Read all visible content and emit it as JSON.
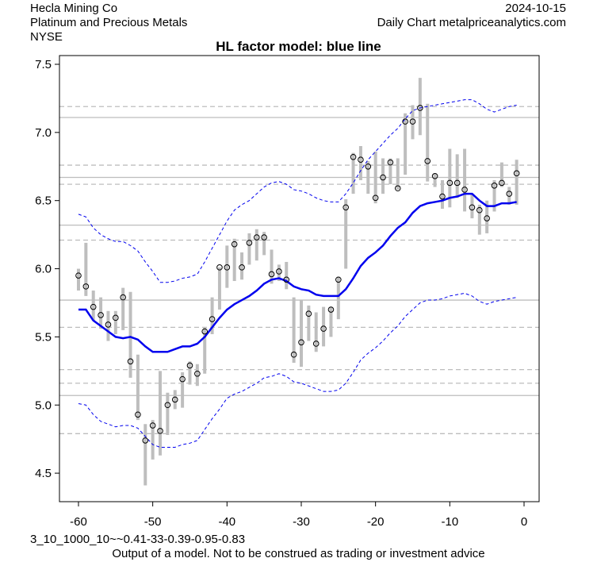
{
  "header": {
    "company": "Hecla Mining Co",
    "sector": "Platinum and Precious Metals",
    "exchange": "NYSE",
    "date": "2024-10-15",
    "source": "Daily Chart metalpriceanalytics.com"
  },
  "footer": {
    "params": "3_10_1000_10~~0.41-33-0.39-0.95-0.83",
    "disclaimer": "Output of a model. Not to be construed as trading or investment advice"
  },
  "chart_data": {
    "type": "line",
    "title": "HL factor model: blue line",
    "xlabel": "",
    "ylabel": "",
    "xlim": [
      -62,
      2
    ],
    "ylim": [
      4.35,
      7.55
    ],
    "x_ticks": [
      -60,
      -50,
      -40,
      -30,
      -20,
      -10,
      0
    ],
    "y_ticks": [
      4.5,
      5.0,
      5.5,
      6.0,
      6.5,
      7.0,
      7.5
    ],
    "x": [
      -60,
      -59,
      -58,
      -57,
      -56,
      -55,
      -54,
      -53,
      -52,
      -51,
      -50,
      -49,
      -48,
      -47,
      -46,
      -45,
      -44,
      -43,
      -42,
      -41,
      -40,
      -39,
      -38,
      -37,
      -36,
      -35,
      -34,
      -33,
      -32,
      -31,
      -30,
      -29,
      -28,
      -27,
      -26,
      -25,
      -24,
      -23,
      -22,
      -21,
      -20,
      -19,
      -18,
      -17,
      -16,
      -15,
      -14,
      -13,
      -12,
      -11,
      -10,
      -9,
      -8,
      -7,
      -6,
      -5,
      -4,
      -3,
      -2,
      -1
    ],
    "close": [
      5.95,
      5.87,
      5.72,
      5.66,
      5.59,
      5.64,
      5.79,
      5.32,
      4.93,
      4.74,
      4.85,
      4.81,
      5.0,
      5.04,
      5.19,
      5.29,
      5.23,
      5.54,
      5.63,
      6.01,
      6.01,
      6.18,
      6.01,
      6.19,
      6.23,
      6.23,
      5.96,
      5.98,
      5.92,
      5.37,
      5.46,
      5.67,
      5.45,
      5.56,
      5.7,
      5.92,
      6.45,
      6.82,
      6.8,
      6.75,
      6.52,
      6.67,
      6.78,
      6.59,
      7.08,
      7.08,
      7.18,
      6.79,
      6.68,
      6.53,
      6.63,
      6.63,
      6.58,
      6.45,
      6.43,
      6.37,
      6.61,
      6.63,
      6.55,
      6.7
    ],
    "high": [
      6.0,
      6.19,
      5.84,
      5.79,
      5.69,
      5.69,
      5.86,
      5.83,
      5.37,
      4.86,
      4.89,
      5.25,
      5.09,
      5.11,
      5.24,
      5.32,
      5.3,
      5.57,
      5.79,
      6.01,
      6.17,
      6.22,
      6.12,
      6.26,
      6.29,
      6.27,
      6.14,
      6.03,
      6.05,
      5.79,
      5.77,
      5.73,
      5.68,
      5.72,
      5.72,
      5.94,
      6.51,
      6.85,
      6.9,
      6.79,
      6.86,
      6.81,
      6.81,
      6.81,
      7.14,
      7.2,
      7.4,
      7.21,
      6.7,
      6.65,
      6.88,
      6.84,
      6.88,
      6.55,
      6.47,
      6.5,
      6.65,
      6.78,
      6.6,
      6.8
    ],
    "low": [
      5.84,
      5.8,
      5.62,
      5.56,
      5.47,
      5.52,
      5.55,
      5.2,
      4.89,
      4.41,
      4.6,
      4.63,
      4.78,
      4.97,
      4.98,
      5.15,
      5.14,
      5.23,
      5.52,
      5.7,
      5.86,
      5.91,
      5.92,
      6.03,
      6.06,
      6.1,
      5.89,
      5.91,
      5.85,
      5.31,
      5.28,
      5.47,
      5.39,
      5.43,
      5.5,
      5.63,
      6.0,
      6.55,
      6.65,
      6.55,
      6.48,
      6.55,
      6.62,
      6.58,
      6.69,
      6.95,
      6.98,
      6.64,
      6.6,
      6.44,
      6.45,
      6.52,
      6.42,
      6.37,
      6.25,
      6.26,
      6.42,
      6.6,
      6.47,
      6.47
    ],
    "series": [
      {
        "name": "model",
        "color": "#0000ee",
        "values": [
          5.7,
          5.7,
          5.62,
          5.58,
          5.54,
          5.5,
          5.49,
          5.5,
          5.48,
          5.43,
          5.39,
          5.39,
          5.39,
          5.41,
          5.43,
          5.43,
          5.45,
          5.5,
          5.57,
          5.64,
          5.7,
          5.74,
          5.77,
          5.8,
          5.84,
          5.89,
          5.92,
          5.93,
          5.91,
          5.87,
          5.85,
          5.84,
          5.81,
          5.8,
          5.8,
          5.8,
          5.85,
          5.93,
          6.02,
          6.08,
          6.12,
          6.17,
          6.24,
          6.3,
          6.34,
          6.41,
          6.46,
          6.48,
          6.49,
          6.5,
          6.52,
          6.53,
          6.55,
          6.55,
          6.5,
          6.46,
          6.46,
          6.48,
          6.48,
          6.49
        ]
      },
      {
        "name": "upper band",
        "color": "#0000ee",
        "values": [
          6.4,
          6.38,
          6.3,
          6.25,
          6.22,
          6.2,
          6.2,
          6.17,
          6.13,
          6.05,
          5.98,
          5.9,
          5.9,
          5.91,
          5.93,
          5.94,
          5.96,
          6.05,
          6.15,
          6.25,
          6.35,
          6.43,
          6.47,
          6.5,
          6.55,
          6.6,
          6.63,
          6.64,
          6.62,
          6.58,
          6.57,
          6.55,
          6.52,
          6.5,
          6.49,
          6.49,
          6.55,
          6.63,
          6.72,
          6.8,
          6.86,
          6.92,
          6.98,
          7.03,
          7.1,
          7.16,
          7.18,
          7.19,
          7.2,
          7.21,
          7.22,
          7.23,
          7.24,
          7.24,
          7.21,
          7.17,
          7.15,
          7.17,
          7.19,
          7.2
        ]
      },
      {
        "name": "lower band",
        "color": "#0000ee",
        "values": [
          5.01,
          5.0,
          4.93,
          4.88,
          4.86,
          4.84,
          4.85,
          4.85,
          4.83,
          4.77,
          4.71,
          4.69,
          4.69,
          4.69,
          4.71,
          4.72,
          4.74,
          4.82,
          4.9,
          4.97,
          5.05,
          5.08,
          5.1,
          5.13,
          5.16,
          5.2,
          5.21,
          5.23,
          5.21,
          5.17,
          5.16,
          5.14,
          5.12,
          5.1,
          5.1,
          5.11,
          5.16,
          5.24,
          5.33,
          5.38,
          5.42,
          5.47,
          5.53,
          5.58,
          5.65,
          5.7,
          5.75,
          5.77,
          5.77,
          5.78,
          5.8,
          5.81,
          5.82,
          5.8,
          5.76,
          5.74,
          5.76,
          5.77,
          5.78,
          5.79
        ]
      }
    ],
    "reference_lines_solid": [
      7.11,
      6.67,
      6.32,
      5.77,
      5.07
    ],
    "reference_lines_dashed": [
      7.19,
      6.76,
      6.62,
      6.21,
      5.57,
      5.26,
      5.16,
      4.79
    ],
    "grid": false
  }
}
